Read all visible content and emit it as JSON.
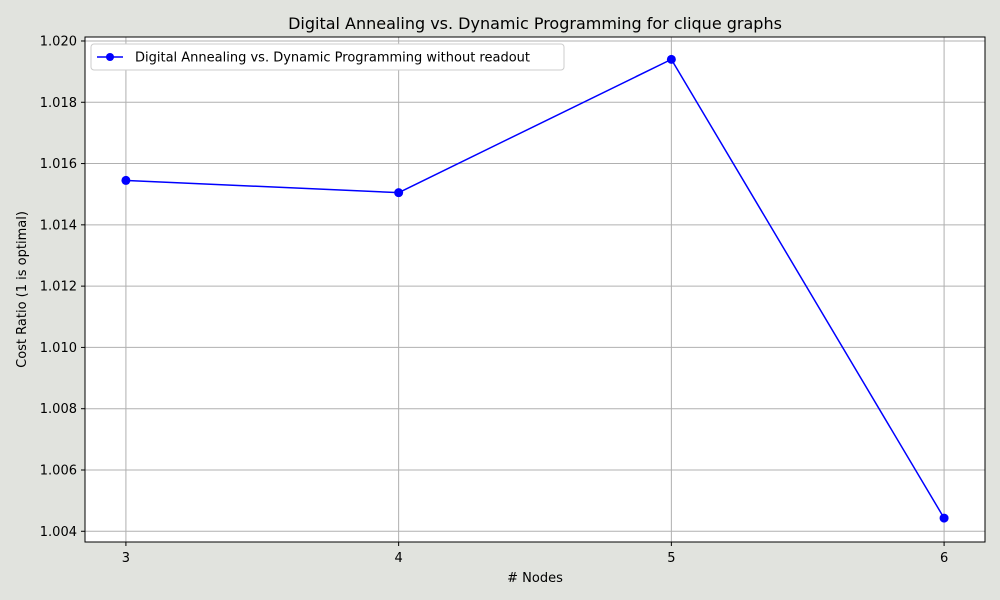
{
  "chart_data": {
    "type": "line",
    "title": "Digital Annealing vs. Dynamic Programming for clique graphs",
    "xlabel": "# Nodes",
    "ylabel": "Cost Ratio (1 is optimal)",
    "x": [
      3,
      4,
      5,
      6
    ],
    "xticks": [
      "3",
      "4",
      "5",
      "6"
    ],
    "xlim": [
      2.85,
      6.15
    ],
    "yticks": [
      "1.004",
      "1.006",
      "1.008",
      "1.010",
      "1.012",
      "1.014",
      "1.016",
      "1.018",
      "1.020"
    ],
    "ylim": [
      1.00365,
      1.02013
    ],
    "grid": true,
    "legend_position": "upper-left",
    "series": [
      {
        "name": "Digital Annealing vs. Dynamic Programming without readout",
        "values": [
          1.01545,
          1.01505,
          1.0194,
          1.00443
        ],
        "color": "#0000ff",
        "marker": "circle"
      }
    ]
  }
}
